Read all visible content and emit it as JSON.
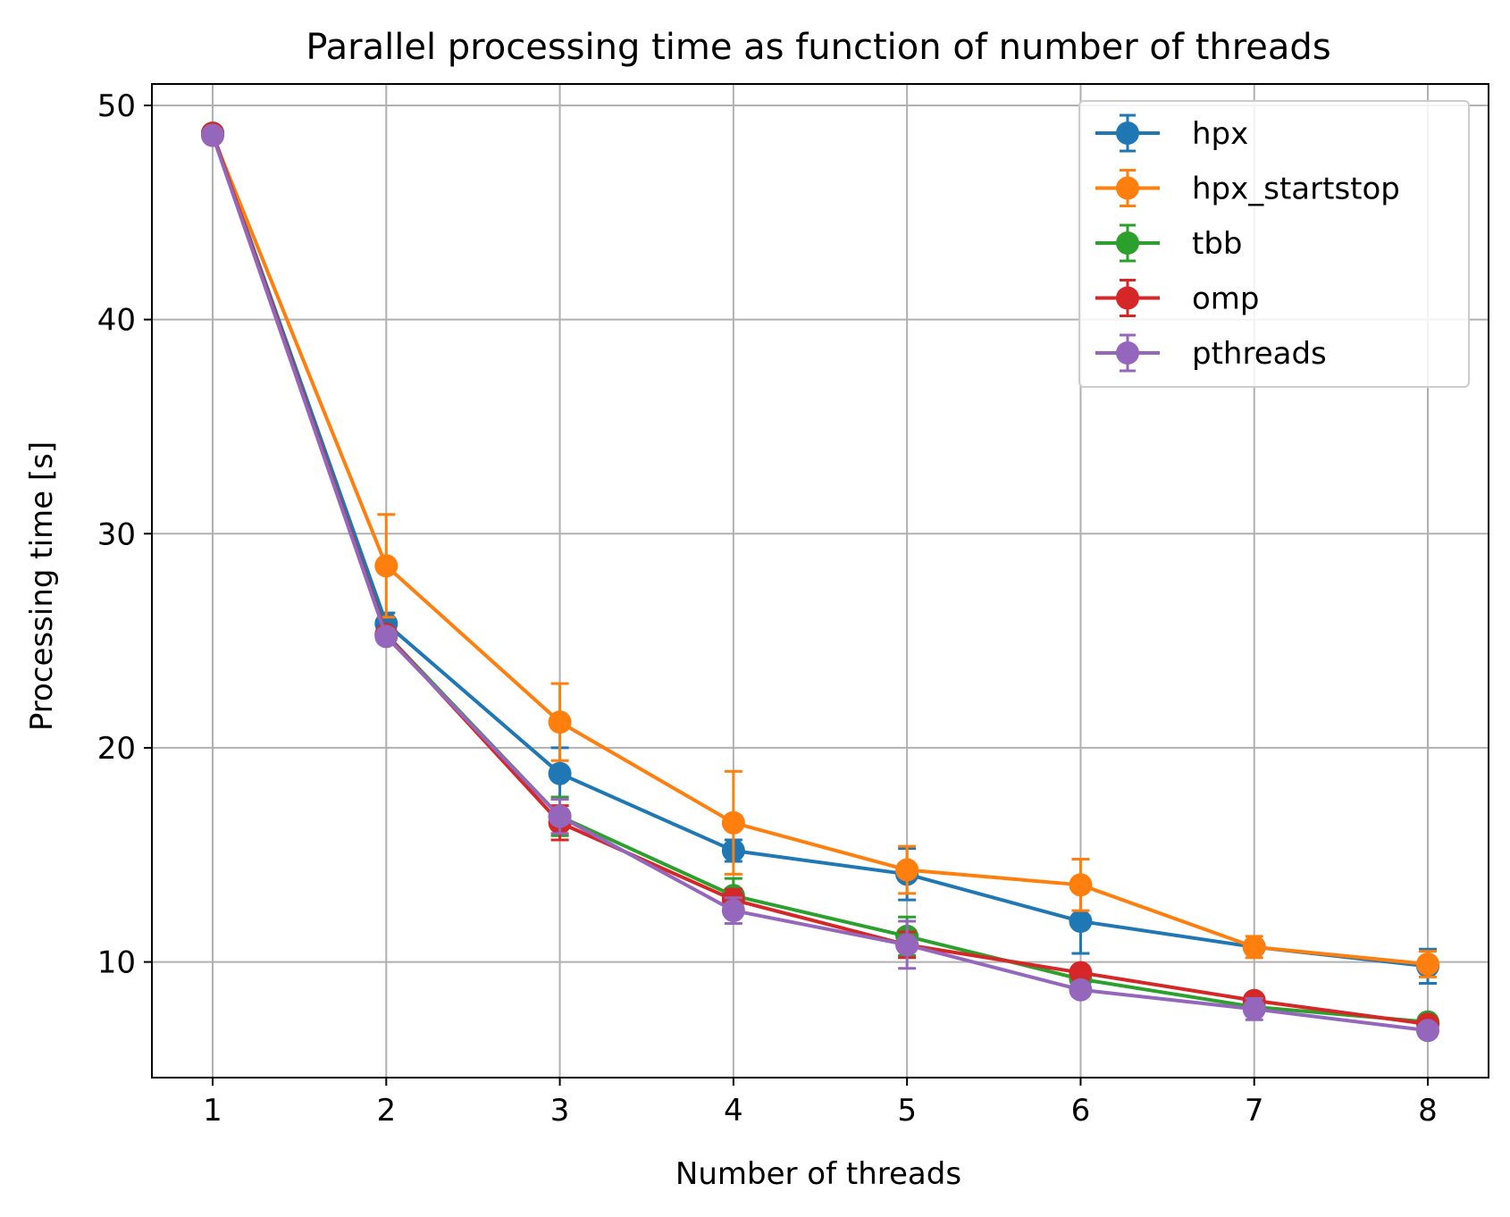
{
  "chart_data": {
    "type": "line",
    "title": "Parallel processing time as function of number of threads",
    "xlabel": "Number of threads",
    "ylabel": "Processing time [s]",
    "x": [
      1,
      2,
      3,
      4,
      5,
      6,
      7,
      8
    ],
    "xlim": [
      0.65,
      8.35
    ],
    "ylim": [
      4.6,
      51.0
    ],
    "xticks": [
      "1",
      "2",
      "3",
      "4",
      "5",
      "6",
      "7",
      "8"
    ],
    "yticks": [
      "10",
      "20",
      "30",
      "40",
      "50"
    ],
    "grid": true,
    "legend_position": "top-right",
    "error_bars": true,
    "series": [
      {
        "name": "hpx",
        "color": "#1f77b4",
        "values": [
          48.7,
          25.8,
          18.8,
          15.2,
          14.1,
          11.9,
          10.7,
          9.8
        ],
        "errors": [
          0.2,
          0.5,
          1.2,
          0.5,
          1.2,
          1.5,
          0.3,
          0.8
        ]
      },
      {
        "name": "hpx_startstop",
        "color": "#ff7f0e",
        "values": [
          48.6,
          28.5,
          21.2,
          16.5,
          14.3,
          13.6,
          10.7,
          9.9
        ],
        "errors": [
          0.2,
          2.4,
          1.8,
          2.4,
          1.1,
          1.2,
          0.5,
          0.6
        ]
      },
      {
        "name": "tbb",
        "color": "#2ca02c",
        "values": [
          48.7,
          25.3,
          16.8,
          13.1,
          11.2,
          9.2,
          7.9,
          7.2
        ],
        "errors": [
          0.2,
          0.3,
          0.9,
          0.8,
          0.9,
          0.3,
          0.3,
          0.3
        ]
      },
      {
        "name": "omp",
        "color": "#d62728",
        "values": [
          48.7,
          25.3,
          16.5,
          12.9,
          10.8,
          9.5,
          8.2,
          7.1
        ],
        "errors": [
          0.2,
          0.3,
          0.8,
          0.5,
          0.6,
          0.3,
          0.3,
          0.3
        ]
      },
      {
        "name": "pthreads",
        "color": "#9467bd",
        "values": [
          48.6,
          25.2,
          16.8,
          12.4,
          10.8,
          8.7,
          7.8,
          6.8
        ],
        "errors": [
          0.2,
          0.3,
          0.8,
          0.6,
          1.1,
          0.3,
          0.5,
          0.3
        ]
      }
    ]
  }
}
